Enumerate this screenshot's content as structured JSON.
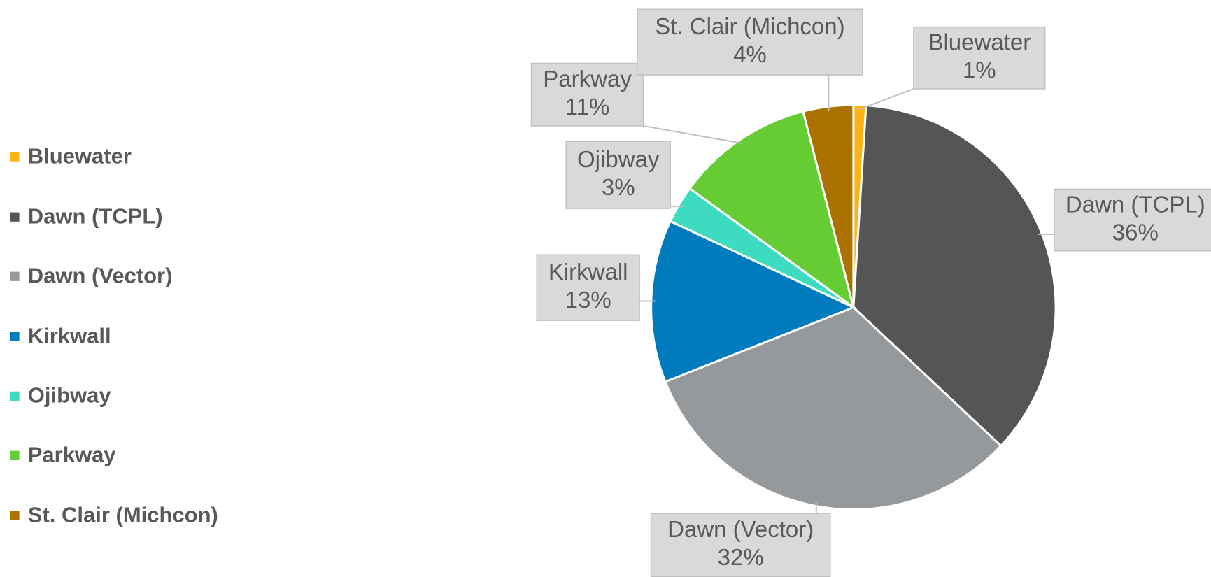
{
  "chart_data": {
    "type": "pie",
    "categories": [
      "Bluewater",
      "Dawn (TCPL)",
      "Dawn (Vector)",
      "Kirkwall",
      "Ojibway",
      "Parkway",
      "St. Clair (Michcon)"
    ],
    "values": [
      1,
      36,
      32,
      13,
      3,
      11,
      4
    ],
    "value_labels": [
      "1%",
      "36%",
      "32%",
      "13%",
      "3%",
      "11%",
      "4%"
    ],
    "colors": [
      "#fbb415",
      "#555555",
      "#96999b",
      "#007bbd",
      "#3ddbc0",
      "#66cc33",
      "#ab7200"
    ],
    "legend": "left"
  }
}
